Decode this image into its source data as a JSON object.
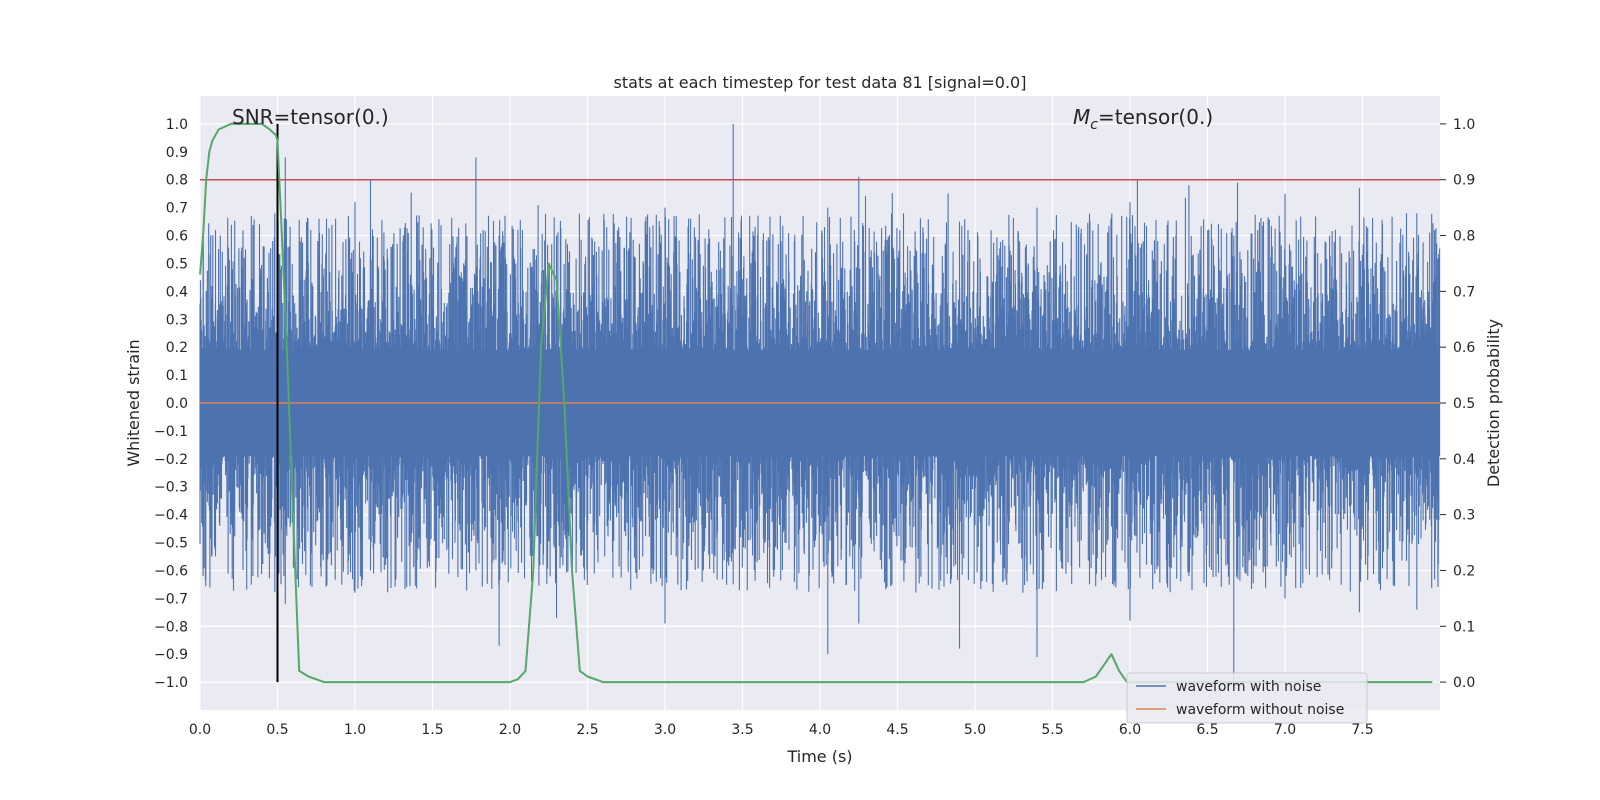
{
  "chart_data": {
    "type": "line",
    "title": "stats at each timestep for test data 81 [signal=0.0]",
    "xlabel": "Time (s)",
    "ylabel": "Whitened strain",
    "y2label": "Detection probability",
    "xlim": [
      0.0,
      8.0
    ],
    "ylim": [
      -1.1,
      1.1
    ],
    "y2lim": [
      -0.05,
      1.05
    ],
    "xticks": [
      "0.0",
      "0.5",
      "1.0",
      "1.5",
      "2.0",
      "2.5",
      "3.0",
      "3.5",
      "4.0",
      "4.5",
      "5.0",
      "5.5",
      "6.0",
      "6.5",
      "7.0",
      "7.5"
    ],
    "yticks": [
      "1.0",
      "0.9",
      "0.8",
      "0.7",
      "0.6",
      "0.5",
      "0.4",
      "0.3",
      "0.2",
      "0.1",
      "0.0",
      "−0.1",
      "−0.2",
      "−0.3",
      "−0.4",
      "−0.5",
      "−0.6",
      "−0.7",
      "−0.8",
      "−0.9",
      "−1.0"
    ],
    "y2ticks": [
      "1.0",
      "0.9",
      "0.8",
      "0.7",
      "0.6",
      "0.5",
      "0.4",
      "0.3",
      "0.2",
      "0.1",
      "0.0"
    ],
    "grid": true,
    "legend_position": "lower-right",
    "annotations": {
      "snr": "SNR=tensor(0.)",
      "mc_symbol": "M",
      "mc_sub": "c",
      "mc_value": "=tensor(0.)"
    },
    "threshold_line": {
      "y2": 0.9,
      "color": "#c44e52"
    },
    "marker_line": {
      "x": 0.5,
      "y_range": [
        -1.0,
        1.0
      ],
      "color": "#000000"
    },
    "series": [
      {
        "name": "waveform with noise",
        "color": "#4c72b0",
        "envelope_note_points": [
          [
            0.02,
            0.58,
            -0.62
          ],
          [
            0.1,
            0.62,
            -0.55
          ],
          [
            0.5,
            0.8,
            -0.63
          ],
          [
            0.55,
            0.88,
            -0.72
          ],
          [
            1.0,
            0.72,
            -0.68
          ],
          [
            1.1,
            0.8,
            -0.6
          ],
          [
            1.78,
            0.88,
            -0.6
          ],
          [
            1.93,
            0.6,
            -0.87
          ],
          [
            2.3,
            0.6,
            -0.77
          ],
          [
            3.0,
            0.7,
            -0.79
          ],
          [
            3.44,
            1.0,
            -0.65
          ],
          [
            4.05,
            0.7,
            -0.9
          ],
          [
            4.25,
            0.81,
            -0.79
          ],
          [
            4.9,
            0.65,
            -0.88
          ],
          [
            5.4,
            0.7,
            -0.91
          ],
          [
            6.0,
            0.72,
            -0.78
          ],
          [
            6.38,
            0.78,
            -0.62
          ],
          [
            6.67,
            0.6,
            -1.0
          ],
          [
            7.0,
            0.75,
            -0.7
          ],
          [
            7.48,
            0.77,
            -0.75
          ],
          [
            7.85,
            0.68,
            -0.74
          ]
        ]
      },
      {
        "name": "waveform without noise",
        "color": "#dd8452",
        "values_note": "flat at 0.0 across the whole time range"
      },
      {
        "name": "detection probability",
        "color": "#55a868",
        "axis": "right",
        "x": [
          0.0,
          0.02,
          0.04,
          0.06,
          0.08,
          0.12,
          0.2,
          0.3,
          0.4,
          0.45,
          0.49,
          0.5,
          0.52,
          0.56,
          0.6,
          0.64,
          0.7,
          0.8,
          1.0,
          1.5,
          2.0,
          2.05,
          2.1,
          2.15,
          2.2,
          2.25,
          2.3,
          2.35,
          2.4,
          2.45,
          2.5,
          2.6,
          3.0,
          4.0,
          5.0,
          5.5,
          5.7,
          5.78,
          5.83,
          5.88,
          5.93,
          5.98,
          6.1,
          6.5,
          7.0,
          7.5,
          7.95
        ],
        "y2": [
          0.73,
          0.8,
          0.9,
          0.95,
          0.97,
          0.99,
          1.0,
          1.0,
          1.0,
          0.99,
          0.98,
          0.97,
          0.85,
          0.6,
          0.3,
          0.02,
          0.01,
          0.0,
          0.0,
          0.0,
          0.0,
          0.005,
          0.02,
          0.2,
          0.6,
          0.75,
          0.72,
          0.5,
          0.2,
          0.02,
          0.01,
          0.0,
          0.0,
          0.0,
          0.0,
          0.0,
          0.0,
          0.01,
          0.03,
          0.05,
          0.02,
          0.0,
          0.0,
          0.0,
          0.0,
          0.0,
          0.0
        ]
      }
    ]
  }
}
